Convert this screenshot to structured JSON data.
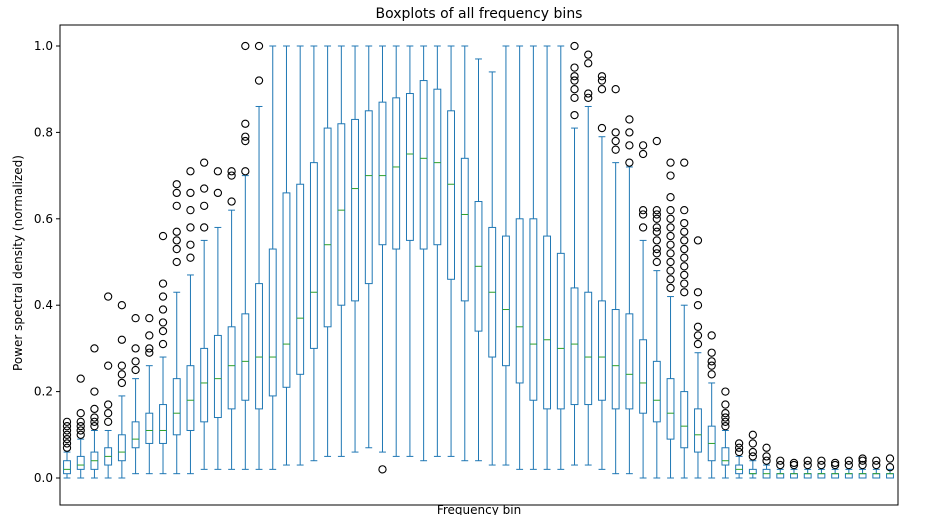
{
  "chart_data": {
    "type": "boxplot",
    "title": "Boxplots of all frequency bins",
    "xlabel": "Frequency bin",
    "ylabel": "Power spectral density (normalized)",
    "ylim": [
      0.0,
      1.0
    ],
    "yticks": [
      0.0,
      0.2,
      0.4,
      0.6,
      0.8,
      1.0
    ],
    "ytick_labels": [
      "0.0",
      "0.2",
      "0.4",
      "0.6",
      "0.8",
      "1.0"
    ],
    "grid": false,
    "colors": {
      "box": "#1f77b4",
      "median": "#2ca02c",
      "outlier": "#000000"
    },
    "boxes": [
      {
        "min": 0.0,
        "q1": 0.01,
        "med": 0.02,
        "q3": 0.04,
        "max": 0.06,
        "out": [
          0.07,
          0.08,
          0.09,
          0.1,
          0.11,
          0.12,
          0.13
        ]
      },
      {
        "min": 0.0,
        "q1": 0.02,
        "med": 0.03,
        "q3": 0.05,
        "max": 0.09,
        "out": [
          0.1,
          0.11,
          0.12,
          0.13,
          0.15,
          0.23
        ]
      },
      {
        "min": 0.0,
        "q1": 0.02,
        "med": 0.04,
        "q3": 0.06,
        "max": 0.11,
        "out": [
          0.12,
          0.13,
          0.14,
          0.16,
          0.2,
          0.3
        ]
      },
      {
        "min": 0.0,
        "q1": 0.03,
        "med": 0.05,
        "q3": 0.07,
        "max": 0.11,
        "out": [
          0.13,
          0.15,
          0.17,
          0.26,
          0.42
        ]
      },
      {
        "min": 0.0,
        "q1": 0.04,
        "med": 0.06,
        "q3": 0.1,
        "max": 0.19,
        "out": [
          0.22,
          0.24,
          0.26,
          0.32,
          0.4
        ]
      },
      {
        "min": 0.01,
        "q1": 0.07,
        "med": 0.09,
        "q3": 0.13,
        "max": 0.23,
        "out": [
          0.25,
          0.27,
          0.3,
          0.37
        ]
      },
      {
        "min": 0.01,
        "q1": 0.08,
        "med": 0.11,
        "q3": 0.15,
        "max": 0.26,
        "out": [
          0.29,
          0.3,
          0.33,
          0.37
        ]
      },
      {
        "min": 0.01,
        "q1": 0.08,
        "med": 0.11,
        "q3": 0.17,
        "max": 0.28,
        "out": [
          0.31,
          0.34,
          0.36,
          0.39,
          0.42,
          0.45,
          0.56
        ]
      },
      {
        "min": 0.01,
        "q1": 0.1,
        "med": 0.15,
        "q3": 0.23,
        "max": 0.43,
        "out": [
          0.5,
          0.53,
          0.55,
          0.57,
          0.63,
          0.66,
          0.68
        ]
      },
      {
        "min": 0.01,
        "q1": 0.11,
        "med": 0.18,
        "q3": 0.26,
        "max": 0.47,
        "out": [
          0.51,
          0.54,
          0.58,
          0.62,
          0.66,
          0.71
        ]
      },
      {
        "min": 0.02,
        "q1": 0.13,
        "med": 0.22,
        "q3": 0.3,
        "max": 0.55,
        "out": [
          0.58,
          0.63,
          0.67,
          0.73
        ]
      },
      {
        "min": 0.02,
        "q1": 0.14,
        "med": 0.23,
        "q3": 0.33,
        "max": 0.58,
        "out": [
          0.66,
          0.71
        ]
      },
      {
        "min": 0.02,
        "q1": 0.16,
        "med": 0.26,
        "q3": 0.35,
        "max": 0.62,
        "out": [
          0.64,
          0.7,
          0.71
        ]
      },
      {
        "min": 0.02,
        "q1": 0.18,
        "med": 0.27,
        "q3": 0.38,
        "max": 0.7,
        "out": [
          0.71,
          0.78,
          0.79,
          0.82,
          1.0
        ]
      },
      {
        "min": 0.02,
        "q1": 0.16,
        "med": 0.28,
        "q3": 0.45,
        "max": 0.86,
        "out": [
          0.92,
          1.0
        ]
      },
      {
        "min": 0.02,
        "q1": 0.19,
        "med": 0.28,
        "q3": 0.53,
        "max": 1.0,
        "out": []
      },
      {
        "min": 0.03,
        "q1": 0.21,
        "med": 0.31,
        "q3": 0.66,
        "max": 1.0,
        "out": []
      },
      {
        "min": 0.03,
        "q1": 0.24,
        "med": 0.37,
        "q3": 0.68,
        "max": 1.0,
        "out": []
      },
      {
        "min": 0.04,
        "q1": 0.3,
        "med": 0.43,
        "q3": 0.73,
        "max": 1.0,
        "out": []
      },
      {
        "min": 0.05,
        "q1": 0.35,
        "med": 0.54,
        "q3": 0.81,
        "max": 1.0,
        "out": []
      },
      {
        "min": 0.05,
        "q1": 0.4,
        "med": 0.62,
        "q3": 0.82,
        "max": 1.0,
        "out": []
      },
      {
        "min": 0.06,
        "q1": 0.41,
        "med": 0.67,
        "q3": 0.83,
        "max": 1.0,
        "out": []
      },
      {
        "min": 0.07,
        "q1": 0.45,
        "med": 0.7,
        "q3": 0.85,
        "max": 1.0,
        "out": []
      },
      {
        "min": 0.06,
        "q1": 0.54,
        "med": 0.7,
        "q3": 0.87,
        "max": 1.0,
        "out": [
          0.02
        ]
      },
      {
        "min": 0.05,
        "q1": 0.53,
        "med": 0.72,
        "q3": 0.88,
        "max": 1.0,
        "out": []
      },
      {
        "min": 0.05,
        "q1": 0.55,
        "med": 0.75,
        "q3": 0.89,
        "max": 1.0,
        "out": []
      },
      {
        "min": 0.04,
        "q1": 0.53,
        "med": 0.74,
        "q3": 0.92,
        "max": 1.0,
        "out": []
      },
      {
        "min": 0.05,
        "q1": 0.54,
        "med": 0.73,
        "q3": 0.9,
        "max": 1.0,
        "out": []
      },
      {
        "min": 0.05,
        "q1": 0.46,
        "med": 0.68,
        "q3": 0.85,
        "max": 1.0,
        "out": []
      },
      {
        "min": 0.04,
        "q1": 0.41,
        "med": 0.61,
        "q3": 0.74,
        "max": 1.0,
        "out": []
      },
      {
        "min": 0.04,
        "q1": 0.34,
        "med": 0.49,
        "q3": 0.64,
        "max": 0.97,
        "out": []
      },
      {
        "min": 0.03,
        "q1": 0.28,
        "med": 0.43,
        "q3": 0.58,
        "max": 0.94,
        "out": []
      },
      {
        "min": 0.03,
        "q1": 0.26,
        "med": 0.39,
        "q3": 0.56,
        "max": 1.0,
        "out": []
      },
      {
        "min": 0.02,
        "q1": 0.22,
        "med": 0.35,
        "q3": 0.6,
        "max": 1.0,
        "out": []
      },
      {
        "min": 0.02,
        "q1": 0.18,
        "med": 0.31,
        "q3": 0.6,
        "max": 1.0,
        "out": []
      },
      {
        "min": 0.02,
        "q1": 0.16,
        "med": 0.32,
        "q3": 0.56,
        "max": 1.0,
        "out": []
      },
      {
        "min": 0.02,
        "q1": 0.16,
        "med": 0.3,
        "q3": 0.52,
        "max": 1.0,
        "out": []
      },
      {
        "min": 0.03,
        "q1": 0.17,
        "med": 0.31,
        "q3": 0.44,
        "max": 0.81,
        "out": [
          0.84,
          0.88,
          0.9,
          0.92,
          0.93,
          0.95,
          1.0
        ]
      },
      {
        "min": 0.03,
        "q1": 0.17,
        "med": 0.28,
        "q3": 0.43,
        "max": 0.86,
        "out": [
          0.88,
          0.89,
          0.96,
          0.98
        ]
      },
      {
        "min": 0.02,
        "q1": 0.18,
        "med": 0.28,
        "q3": 0.41,
        "max": 0.79,
        "out": [
          0.81,
          0.9,
          0.92,
          0.93
        ]
      },
      {
        "min": 0.01,
        "q1": 0.16,
        "med": 0.26,
        "q3": 0.39,
        "max": 0.73,
        "out": [
          0.76,
          0.78,
          0.8,
          0.9
        ]
      },
      {
        "min": 0.01,
        "q1": 0.16,
        "med": 0.24,
        "q3": 0.38,
        "max": 0.72,
        "out": [
          0.73,
          0.77,
          0.8,
          0.83
        ]
      },
      {
        "min": 0.0,
        "q1": 0.15,
        "med": 0.22,
        "q3": 0.32,
        "max": 0.55,
        "out": [
          0.58,
          0.61,
          0.62,
          0.75,
          0.77
        ]
      },
      {
        "min": 0.0,
        "q1": 0.13,
        "med": 0.18,
        "q3": 0.27,
        "max": 0.48,
        "out": [
          0.5,
          0.52,
          0.53,
          0.55,
          0.57,
          0.58,
          0.6,
          0.61,
          0.62,
          0.78
        ]
      },
      {
        "min": 0.0,
        "q1": 0.09,
        "med": 0.15,
        "q3": 0.23,
        "max": 0.42,
        "out": [
          0.44,
          0.46,
          0.48,
          0.5,
          0.52,
          0.54,
          0.56,
          0.58,
          0.6,
          0.62,
          0.65,
          0.7,
          0.73
        ]
      },
      {
        "min": 0.0,
        "q1": 0.07,
        "med": 0.12,
        "q3": 0.2,
        "max": 0.4,
        "out": [
          0.43,
          0.45,
          0.47,
          0.49,
          0.51,
          0.53,
          0.55,
          0.57,
          0.59,
          0.62,
          0.73
        ]
      },
      {
        "min": 0.0,
        "q1": 0.06,
        "med": 0.1,
        "q3": 0.16,
        "max": 0.29,
        "out": [
          0.31,
          0.33,
          0.35,
          0.4,
          0.43,
          0.55
        ]
      },
      {
        "min": 0.0,
        "q1": 0.04,
        "med": 0.08,
        "q3": 0.12,
        "max": 0.22,
        "out": [
          0.24,
          0.26,
          0.27,
          0.29,
          0.33
        ]
      },
      {
        "min": 0.0,
        "q1": 0.03,
        "med": 0.04,
        "q3": 0.07,
        "max": 0.11,
        "out": [
          0.12,
          0.13,
          0.14,
          0.15,
          0.17,
          0.2
        ]
      },
      {
        "min": 0.0,
        "q1": 0.01,
        "med": 0.02,
        "q3": 0.03,
        "max": 0.05,
        "out": [
          0.06,
          0.07,
          0.08
        ]
      },
      {
        "min": 0.0,
        "q1": 0.01,
        "med": 0.01,
        "q3": 0.02,
        "max": 0.04,
        "out": [
          0.05,
          0.06,
          0.08,
          0.1
        ]
      },
      {
        "min": 0.0,
        "q1": 0.0,
        "med": 0.01,
        "q3": 0.02,
        "max": 0.03,
        "out": [
          0.04,
          0.05,
          0.07
        ]
      },
      {
        "min": 0.0,
        "q1": 0.0,
        "med": 0.01,
        "q3": 0.01,
        "max": 0.02,
        "out": [
          0.03,
          0.04
        ]
      },
      {
        "min": 0.0,
        "q1": 0.0,
        "med": 0.01,
        "q3": 0.01,
        "max": 0.02,
        "out": [
          0.03,
          0.035
        ]
      },
      {
        "min": 0.0,
        "q1": 0.0,
        "med": 0.01,
        "q3": 0.01,
        "max": 0.02,
        "out": [
          0.03,
          0.04
        ]
      },
      {
        "min": 0.0,
        "q1": 0.0,
        "med": 0.01,
        "q3": 0.01,
        "max": 0.02,
        "out": [
          0.03,
          0.04
        ]
      },
      {
        "min": 0.0,
        "q1": 0.0,
        "med": 0.01,
        "q3": 0.01,
        "max": 0.02,
        "out": [
          0.03,
          0.035
        ]
      },
      {
        "min": 0.0,
        "q1": 0.0,
        "med": 0.01,
        "q3": 0.01,
        "max": 0.02,
        "out": [
          0.03,
          0.04
        ]
      },
      {
        "min": 0.0,
        "q1": 0.0,
        "med": 0.01,
        "q3": 0.01,
        "max": 0.02,
        "out": [
          0.03,
          0.04,
          0.045
        ]
      },
      {
        "min": 0.0,
        "q1": 0.0,
        "med": 0.01,
        "q3": 0.01,
        "max": 0.02,
        "out": [
          0.03,
          0.04
        ]
      },
      {
        "min": 0.0,
        "q1": 0.0,
        "med": 0.01,
        "q3": 0.01,
        "max": 0.02,
        "out": [
          0.025,
          0.045
        ]
      }
    ]
  }
}
